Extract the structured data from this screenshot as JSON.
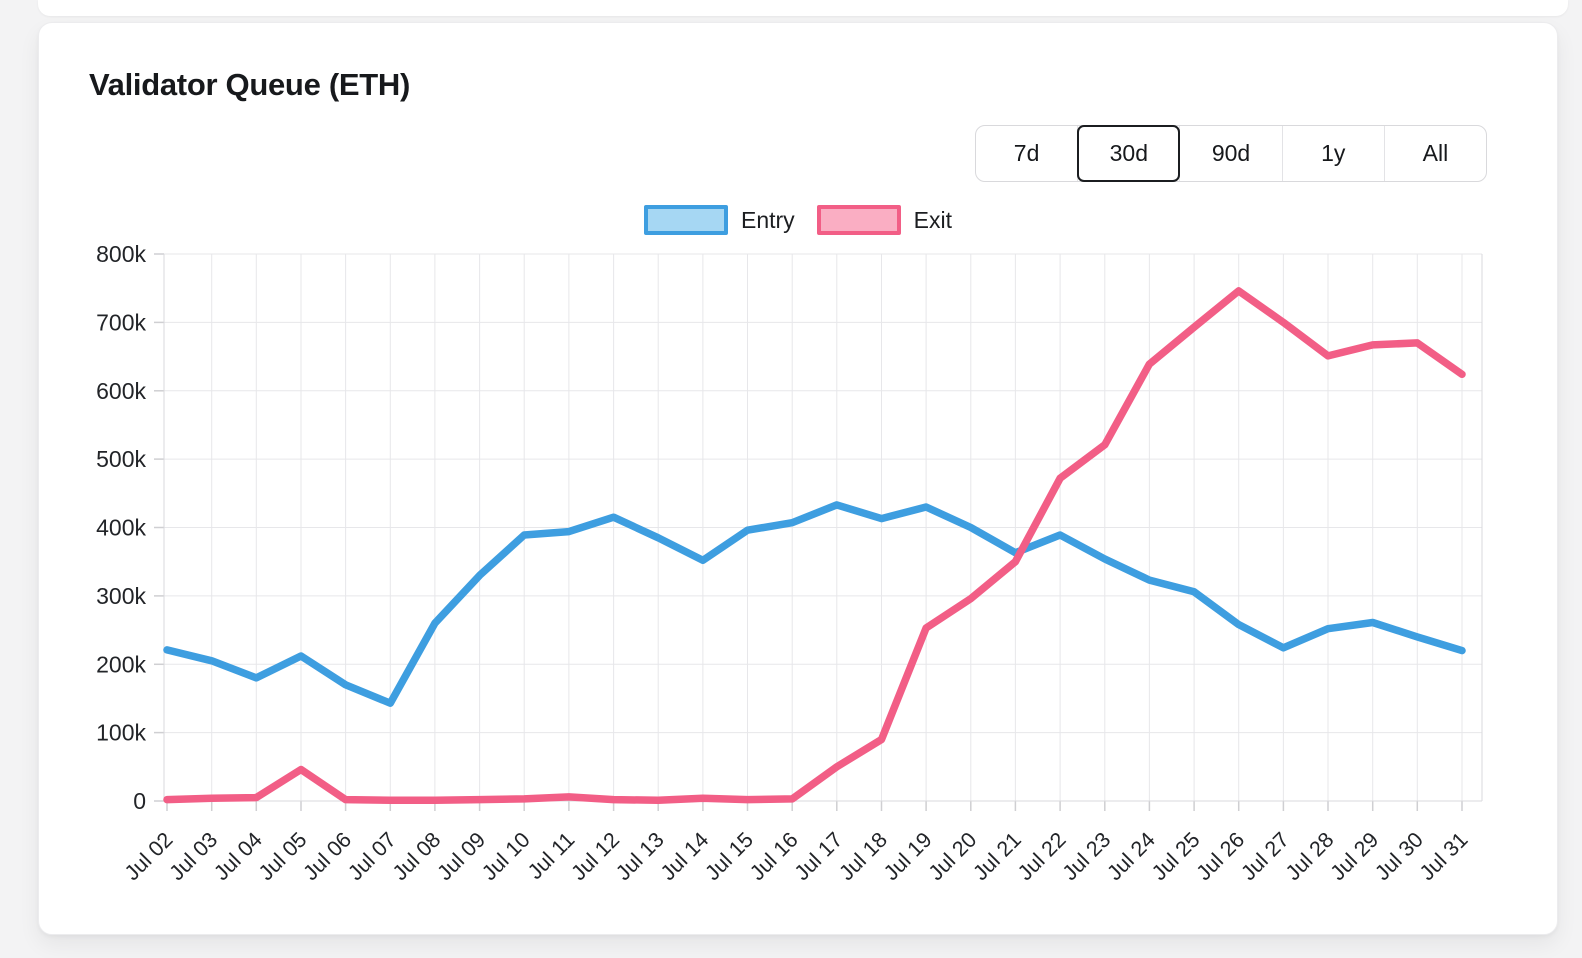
{
  "card": {
    "title": "Validator Queue (ETH)",
    "range_buttons": [
      {
        "label": "7d",
        "active": false
      },
      {
        "label": "30d",
        "active": true
      },
      {
        "label": "90d",
        "active": false
      },
      {
        "label": "1y",
        "active": false
      },
      {
        "label": "All",
        "active": false
      }
    ]
  },
  "chart_data": {
    "type": "line",
    "title": "Validator Queue (ETH)",
    "xlabel": "",
    "ylabel": "",
    "ylim": [
      0,
      800000
    ],
    "y_tick_step": 100000,
    "y_tick_labels": [
      "0",
      "100k",
      "200k",
      "300k",
      "400k",
      "500k",
      "600k",
      "700k",
      "800k"
    ],
    "grid": true,
    "legend_position": "top",
    "x_labels": [
      "Jul 02",
      "Jul 03",
      "Jul 04",
      "Jul 05",
      "Jul 06",
      "Jul 07",
      "Jul 08",
      "Jul 09",
      "Jul 10",
      "Jul 11",
      "Jul 12",
      "Jul 13",
      "Jul 14",
      "Jul 15",
      "Jul 16",
      "Jul 17",
      "Jul 18",
      "Jul 19",
      "Jul 20",
      "Jul 21",
      "Jul 22",
      "Jul 23",
      "Jul 24",
      "Jul 25",
      "Jul 26",
      "Jul 27",
      "Jul 28",
      "Jul 29",
      "Jul 30",
      "Jul 31"
    ],
    "series": [
      {
        "name": "Entry",
        "color": "#3E9EE0",
        "fill_color": "#A6D7F3",
        "values": [
          221000,
          205000,
          180000,
          212000,
          170000,
          143000,
          260000,
          330000,
          389000,
          394000,
          415000,
          385000,
          352000,
          396000,
          407000,
          433000,
          413000,
          430000,
          400000,
          363000,
          389000,
          354000,
          323000,
          306000,
          258000,
          224000,
          252000,
          261000,
          240000,
          220000
        ]
      },
      {
        "name": "Exit",
        "color": "#F25E86",
        "fill_color": "#FAAEC3",
        "values": [
          2000,
          4000,
          5000,
          46000,
          2000,
          1000,
          1000,
          2000,
          3000,
          6000,
          2000,
          1000,
          4000,
          2000,
          3000,
          50000,
          90000,
          253000,
          296000,
          350000,
          472000,
          521000,
          639000,
          693000,
          746000,
          700000,
          651000,
          667000,
          670000,
          624000
        ]
      }
    ]
  }
}
